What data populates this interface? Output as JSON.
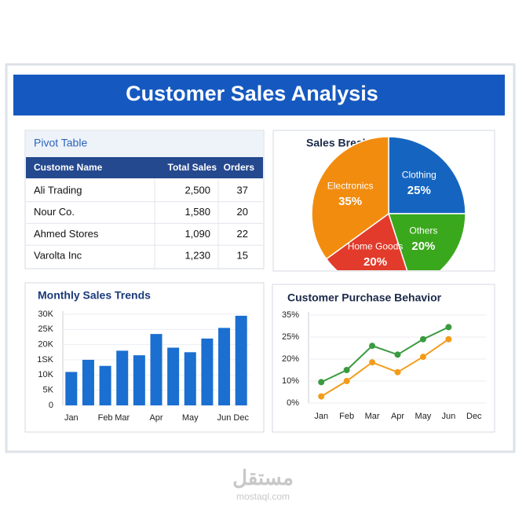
{
  "header": {
    "title": "Customer Sales Analysis"
  },
  "pivot_table": {
    "title": "Pivot Table",
    "columns": [
      "Custome Name",
      "Total Sales",
      "Orders"
    ],
    "rows": [
      [
        "Ali Trading",
        "2,500",
        "37"
      ],
      [
        "Nour Co.",
        "1,580",
        "20"
      ],
      [
        "Ahmed Stores",
        "1,090",
        "22"
      ],
      [
        "Varolta Inc",
        "1,230",
        "15"
      ]
    ]
  },
  "chart_data": [
    {
      "type": "pie",
      "title": "Sales Breakdown",
      "categories": [
        "Clothing",
        "Others",
        "Home Goods",
        "Electronics"
      ],
      "values": [
        25,
        20,
        20,
        35
      ],
      "value_labels": [
        "25%",
        "20%",
        "20%",
        "35%"
      ],
      "colors": [
        "#1565c0",
        "#3aa81c",
        "#e23b2b",
        "#f28c0f"
      ]
    },
    {
      "type": "bar",
      "title": "Monthly Sales Trends",
      "categories": [
        "Jan",
        null,
        "Feb",
        "Mar",
        null,
        "Apr",
        null,
        "May",
        null,
        "Jun",
        "Dec"
      ],
      "values": [
        11000,
        15000,
        13000,
        18000,
        16500,
        23500,
        19000,
        17500,
        22000,
        25500,
        29500
      ],
      "color": "#1a6fd0",
      "ylim": [
        0,
        30000
      ],
      "yticks": [
        0,
        {
          "value": 5000,
          "label": "5K"
        },
        {
          "value": 10000,
          "label": "10K"
        },
        {
          "value": 15000,
          "label": "1SK"
        },
        {
          "value": 20000,
          "label": "20K"
        },
        {
          "value": 25000,
          "label": "25K"
        },
        {
          "value": 30000,
          "label": "30K"
        }
      ],
      "grid": true
    },
    {
      "type": "line",
      "title": "Customer Purchase Behavior",
      "categories": [
        "Jan",
        "Feb",
        "Mar",
        "Apr",
        "May",
        "Jun",
        "Dec"
      ],
      "series": [
        {
          "color": "#3a9a3f",
          "values": [
            9.5,
            15,
            23,
            21,
            24.5,
            29.5,
            null
          ]
        },
        {
          "color": "#f39c1a",
          "values": [
            3,
            10,
            18.5,
            14,
            20.5,
            24.5,
            null
          ]
        }
      ],
      "ylim": [
        0,
        35
      ],
      "yticks": [
        {
          "value": 0,
          "label": "0%"
        },
        {
          "value": 10,
          "label": "10%"
        },
        {
          "value": 20,
          "label": "20%"
        },
        {
          "value": 25,
          "label": "25%"
        },
        {
          "value": 35,
          "label": "35%"
        }
      ],
      "grid": true
    }
  ],
  "watermark": {
    "arabic": "مستقل",
    "latin": "mostaql.com"
  }
}
